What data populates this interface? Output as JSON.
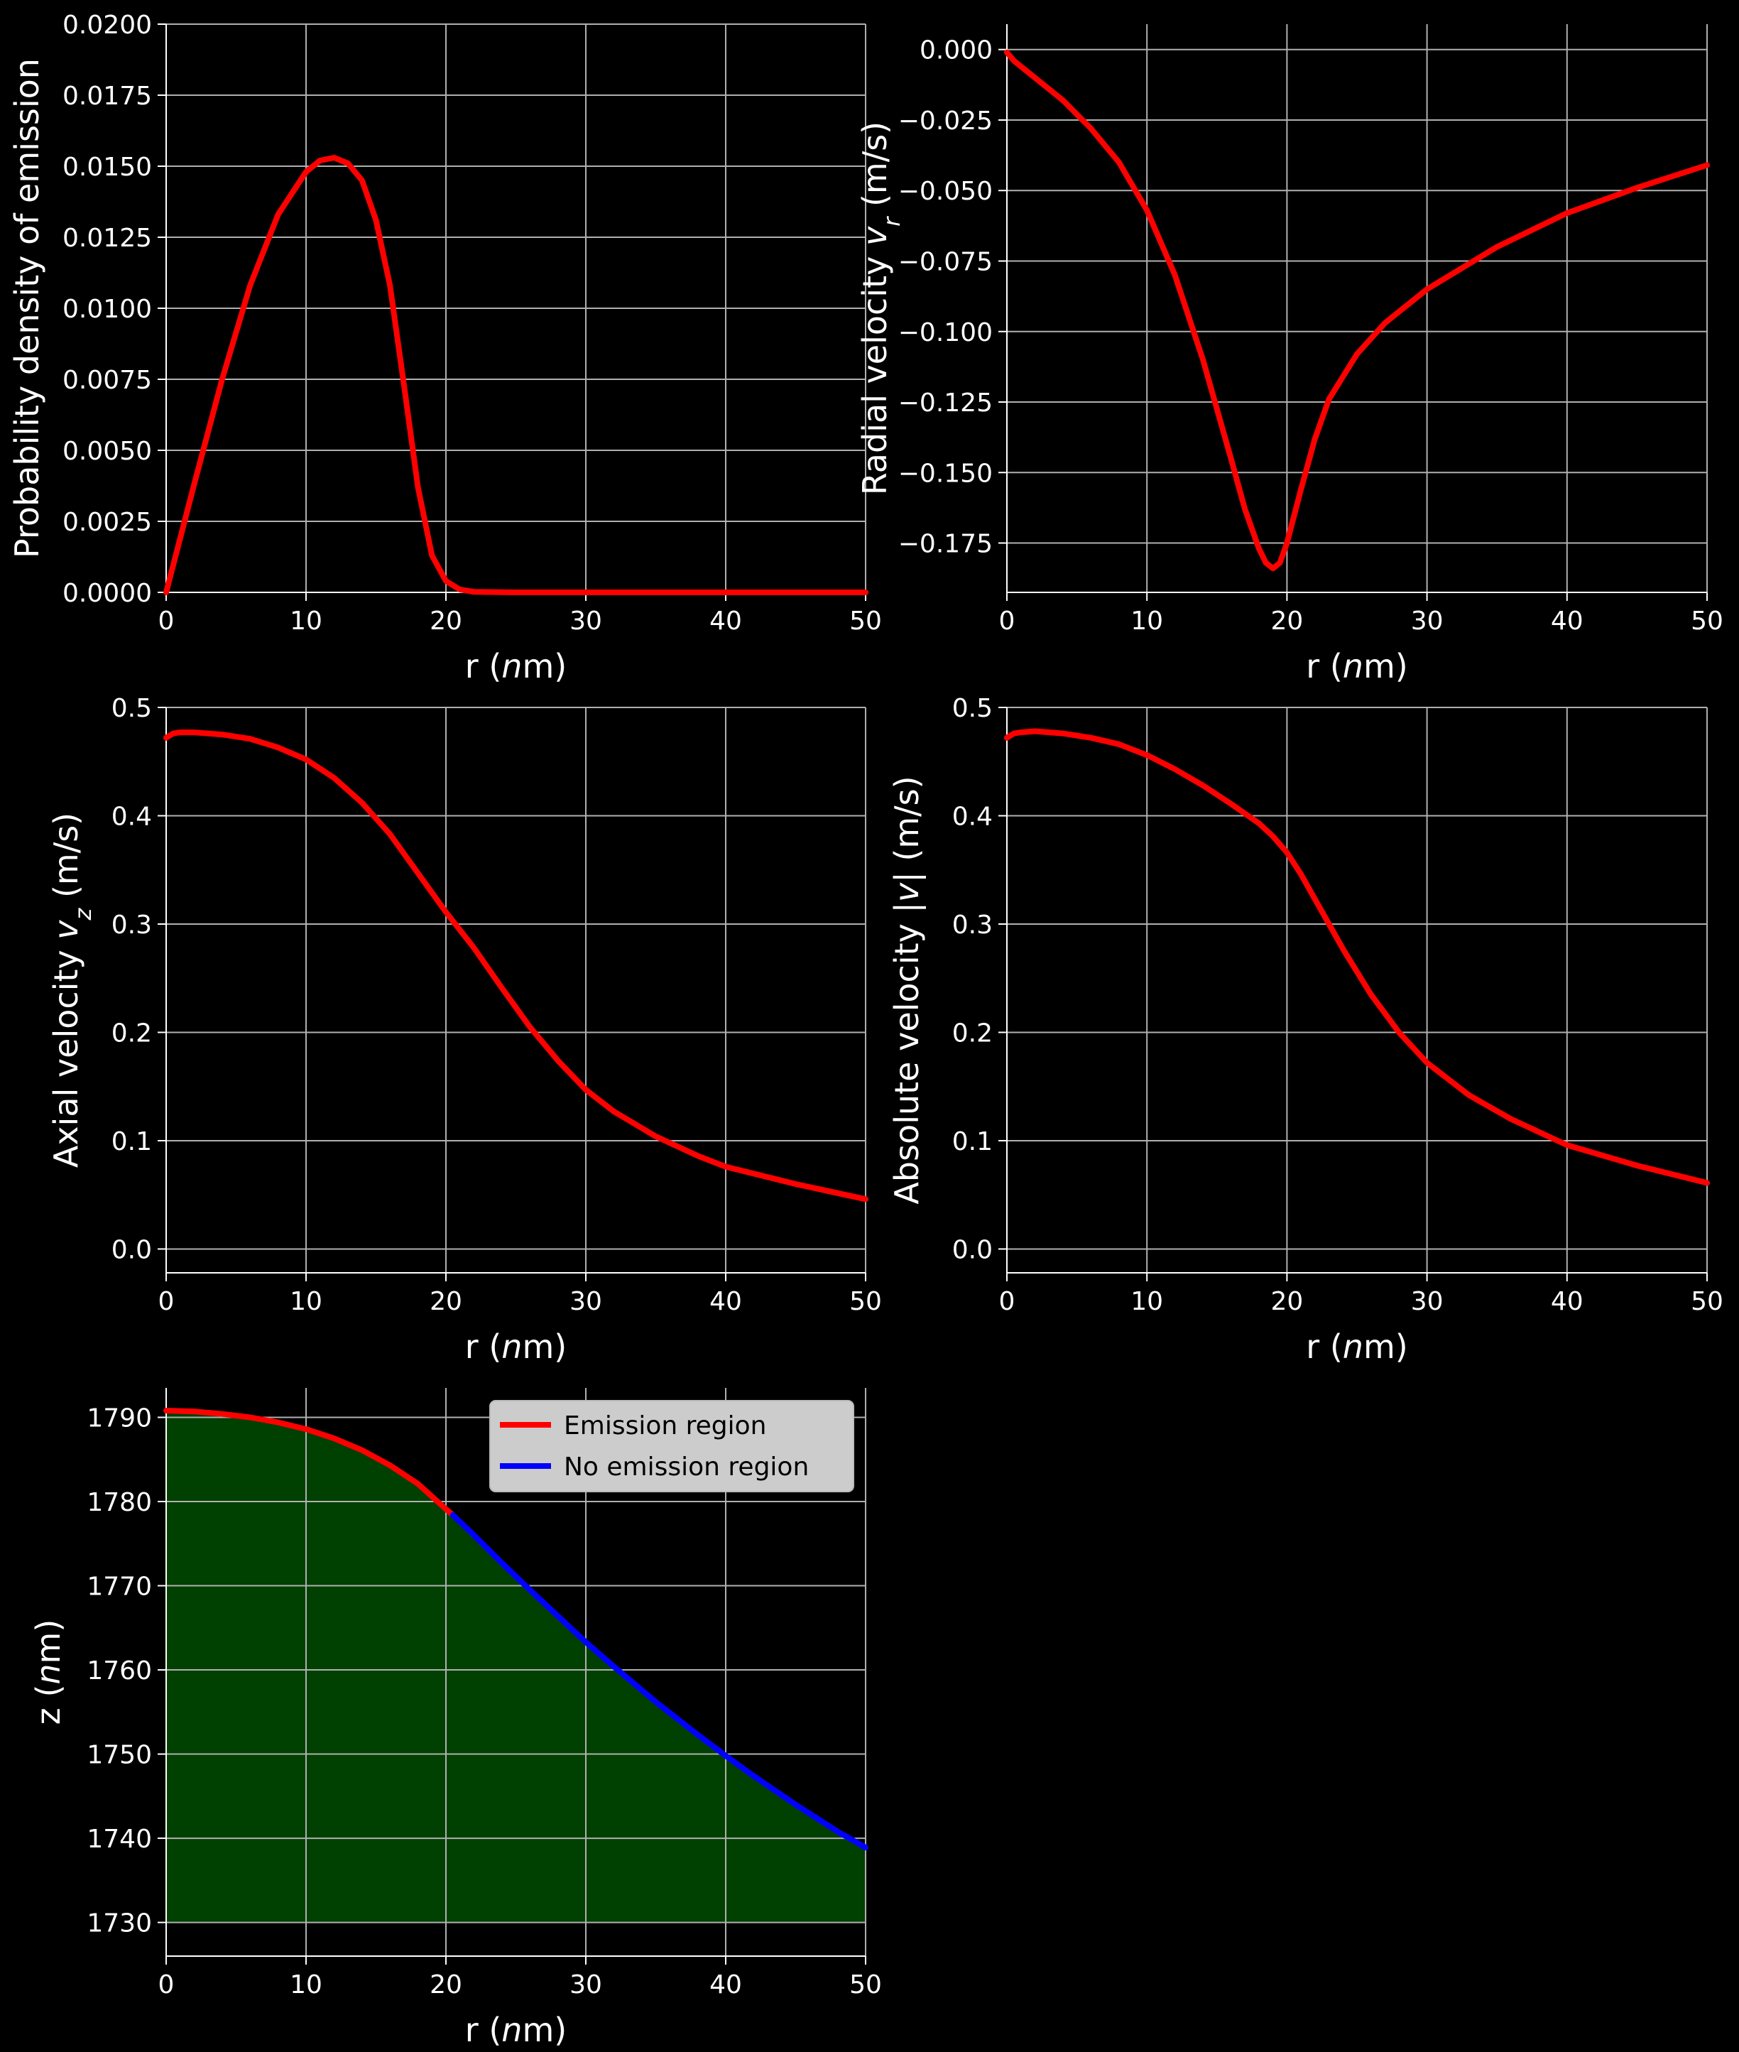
{
  "chart_data": [
    {
      "type": "line",
      "xlabel": "r (nm)",
      "ylabel": "Probability density of emission",
      "xlim": [
        0,
        50
      ],
      "ylim": [
        0,
        0.02
      ],
      "xticks": [
        0,
        10,
        20,
        30,
        40,
        50
      ],
      "yticks": [
        0.0,
        0.0025,
        0.005,
        0.0075,
        0.01,
        0.0125,
        0.015,
        0.0175,
        0.02
      ],
      "ytick_labels": [
        "0.0000",
        "0.0025",
        "0.0050",
        "0.0075",
        "0.0100",
        "0.0125",
        "0.0150",
        "0.0175",
        "0.0200"
      ],
      "grid": true,
      "series": [
        {
          "color": "#ff0000",
          "x": [
            0,
            2,
            4,
            6,
            8,
            10,
            11,
            12,
            13,
            14,
            15,
            16,
            17,
            18,
            19,
            20,
            21,
            22,
            25,
            30,
            40,
            50
          ],
          "y": [
            0,
            0.0038,
            0.0075,
            0.0108,
            0.0133,
            0.0148,
            0.0152,
            0.0153,
            0.0151,
            0.0145,
            0.0131,
            0.0108,
            0.0073,
            0.0037,
            0.0013,
            0.0004,
            0.0001,
            2e-05,
            0,
            0,
            0,
            0
          ]
        }
      ]
    },
    {
      "type": "line",
      "xlabel": "r (nm)",
      "ylabel": "Radial velocity v_r (m/s)",
      "xlim": [
        0,
        50
      ],
      "ylim": [
        -0.1925,
        0.009
      ],
      "xticks": [
        0,
        10,
        20,
        30,
        40,
        50
      ],
      "yticks": [
        0.0,
        -0.025,
        -0.05,
        -0.075,
        -0.1,
        -0.125,
        -0.15,
        -0.175
      ],
      "ytick_labels": [
        "0.000",
        "−0.025",
        "−0.050",
        "−0.075",
        "−0.100",
        "−0.125",
        "−0.150",
        "−0.175"
      ],
      "grid": true,
      "series": [
        {
          "color": "#ff0000",
          "x": [
            0,
            0.5,
            2,
            4,
            6,
            8,
            10,
            12,
            14,
            16,
            17,
            18,
            18.5,
            19,
            19.5,
            20,
            21,
            22,
            23,
            25,
            27,
            30,
            35,
            40,
            45,
            50
          ],
          "y": [
            -0.001,
            -0.004,
            -0.01,
            -0.018,
            -0.028,
            -0.04,
            -0.057,
            -0.08,
            -0.11,
            -0.145,
            -0.163,
            -0.177,
            -0.182,
            -0.184,
            -0.182,
            -0.175,
            -0.156,
            -0.138,
            -0.124,
            -0.108,
            -0.097,
            -0.085,
            -0.07,
            -0.058,
            -0.049,
            -0.041
          ]
        }
      ]
    },
    {
      "type": "line",
      "xlabel": "r (nm)",
      "ylabel": "Axial velocity v_z (m/s)",
      "xlim": [
        0,
        50
      ],
      "ylim": [
        -0.022,
        0.5
      ],
      "xticks": [
        0,
        10,
        20,
        30,
        40,
        50
      ],
      "yticks": [
        0.0,
        0.1,
        0.2,
        0.3,
        0.4,
        0.5
      ],
      "ytick_labels": [
        "0.0",
        "0.1",
        "0.2",
        "0.3",
        "0.4",
        "0.5"
      ],
      "grid": true,
      "series": [
        {
          "color": "#ff0000",
          "x": [
            0,
            0.5,
            1,
            2,
            4,
            6,
            8,
            10,
            12,
            14,
            16,
            18,
            20,
            22,
            24,
            26,
            28,
            30,
            32,
            35,
            38,
            40,
            45,
            50
          ],
          "y": [
            0.472,
            0.476,
            0.477,
            0.477,
            0.475,
            0.471,
            0.463,
            0.452,
            0.435,
            0.412,
            0.383,
            0.347,
            0.311,
            0.278,
            0.241,
            0.205,
            0.174,
            0.147,
            0.127,
            0.104,
            0.086,
            0.076,
            0.06,
            0.046
          ]
        }
      ]
    },
    {
      "type": "line",
      "xlabel": "r (nm)",
      "ylabel": "Absolute velocity |v| (m/s)",
      "xlim": [
        0,
        50
      ],
      "ylim": [
        -0.022,
        0.5
      ],
      "xticks": [
        0,
        10,
        20,
        30,
        40,
        50
      ],
      "yticks": [
        0.0,
        0.1,
        0.2,
        0.3,
        0.4,
        0.5
      ],
      "ytick_labels": [
        "0.0",
        "0.1",
        "0.2",
        "0.3",
        "0.4",
        "0.5"
      ],
      "grid": true,
      "series": [
        {
          "color": "#ff0000",
          "x": [
            0,
            0.5,
            1,
            2,
            4,
            6,
            8,
            10,
            12,
            14,
            16,
            18,
            19,
            20,
            21,
            22,
            23,
            24,
            26,
            28,
            30,
            33,
            36,
            40,
            45,
            50
          ],
          "y": [
            0.472,
            0.476,
            0.477,
            0.478,
            0.476,
            0.472,
            0.466,
            0.456,
            0.443,
            0.428,
            0.411,
            0.393,
            0.381,
            0.366,
            0.346,
            0.323,
            0.3,
            0.277,
            0.235,
            0.2,
            0.172,
            0.142,
            0.12,
            0.096,
            0.077,
            0.061
          ]
        }
      ]
    },
    {
      "type": "area",
      "xlabel": "r (nm)",
      "ylabel": "z (nm)",
      "xlim": [
        0,
        50
      ],
      "ylim": [
        1726,
        1793.5
      ],
      "xticks": [
        0,
        10,
        20,
        30,
        40,
        50
      ],
      "yticks": [
        1730,
        1740,
        1750,
        1760,
        1770,
        1780,
        1790
      ],
      "ytick_labels": [
        "1730",
        "1740",
        "1750",
        "1760",
        "1770",
        "1780",
        "1790"
      ],
      "grid": true,
      "fill_color": "#004000",
      "fill_base": 1730,
      "legend": {
        "position": "top-right",
        "entries": [
          "Emission region",
          "No emission region"
        ]
      },
      "series": [
        {
          "name": "Emission region",
          "color": "#ff0000",
          "x": [
            0,
            2,
            4,
            6,
            8,
            10,
            12,
            14,
            16,
            18,
            20,
            20.5
          ],
          "y": [
            1790.8,
            1790.7,
            1790.4,
            1790,
            1789.4,
            1788.6,
            1787.5,
            1786.1,
            1784.3,
            1782.1,
            1779.1,
            1778.4
          ]
        },
        {
          "name": "No emission region",
          "color": "#0000ff",
          "x": [
            20.5,
            22,
            24,
            26,
            28,
            30,
            32,
            35,
            38,
            40,
            42,
            45,
            48,
            50
          ],
          "y": [
            1778.4,
            1776,
            1772.7,
            1769.5,
            1766.4,
            1763.3,
            1760.4,
            1756.2,
            1752.3,
            1749.8,
            1747.4,
            1744,
            1740.8,
            1738.9
          ]
        }
      ]
    }
  ]
}
